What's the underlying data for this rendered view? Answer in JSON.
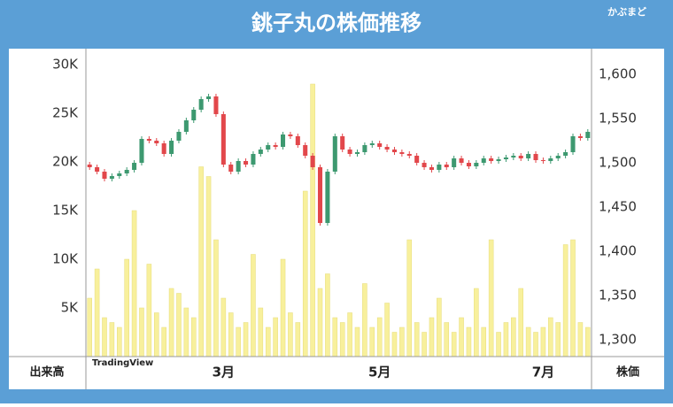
{
  "chart_data": {
    "type": "candlestick",
    "title": "銚子丸の株価推移",
    "brand": "かぶまど",
    "watermark": "TradingView",
    "y_label": "出来高",
    "y2_label": "株価",
    "categories": [
      null,
      null,
      null,
      null,
      null,
      null,
      null,
      null,
      null,
      null,
      null,
      null,
      null,
      null,
      null,
      null,
      null,
      null,
      "3月",
      null,
      null,
      null,
      null,
      null,
      null,
      null,
      null,
      null,
      null,
      null,
      null,
      null,
      null,
      null,
      null,
      null,
      null,
      null,
      null,
      "5月",
      null,
      null,
      null,
      null,
      null,
      null,
      null,
      null,
      null,
      null,
      null,
      null,
      null,
      null,
      null,
      null,
      null,
      null,
      null,
      null,
      null,
      "7月",
      null,
      null,
      null,
      null,
      null,
      null
    ],
    "open": [
      1498,
      1495,
      1490,
      1482,
      1485,
      1488,
      1492,
      1500,
      1527,
      1525,
      1522,
      1510,
      1525,
      1535,
      1548,
      1560,
      1572,
      1575,
      1555,
      1498,
      1490,
      1502,
      1498,
      1510,
      1515,
      1520,
      1518,
      1532,
      1530,
      1520,
      1508,
      1495,
      1432,
      1490,
      1530,
      1515,
      1510,
      1512,
      1520,
      1522,
      1518,
      1515,
      1512,
      1510,
      1508,
      1500,
      1495,
      1492,
      1498,
      1495,
      1505,
      1500,
      1496,
      1500,
      1505,
      1502,
      1504,
      1506,
      1508,
      1505,
      1510,
      1503,
      1502,
      1505,
      1508,
      1512,
      1530,
      1528
    ],
    "high": [
      1501,
      1498,
      1493,
      1488,
      1491,
      1495,
      1503,
      1530,
      1530,
      1528,
      1525,
      1528,
      1538,
      1551,
      1563,
      1575,
      1578,
      1578,
      1558,
      1501,
      1505,
      1505,
      1513,
      1518,
      1523,
      1523,
      1535,
      1535,
      1533,
      1523,
      1511,
      1498,
      1493,
      1533,
      1533,
      1518,
      1515,
      1523,
      1525,
      1525,
      1521,
      1518,
      1515,
      1513,
      1511,
      1503,
      1498,
      1501,
      1501,
      1508,
      1508,
      1503,
      1503,
      1508,
      1508,
      1507,
      1509,
      1511,
      1511,
      1513,
      1513,
      1506,
      1508,
      1511,
      1515,
      1533,
      1533,
      1538
    ],
    "low": [
      1492,
      1487,
      1479,
      1479,
      1482,
      1485,
      1489,
      1497,
      1522,
      1519,
      1507,
      1507,
      1522,
      1532,
      1545,
      1557,
      1569,
      1552,
      1495,
      1487,
      1487,
      1495,
      1495,
      1507,
      1512,
      1515,
      1515,
      1527,
      1517,
      1505,
      1492,
      1429,
      1429,
      1487,
      1512,
      1507,
      1507,
      1509,
      1517,
      1515,
      1512,
      1509,
      1507,
      1505,
      1497,
      1492,
      1489,
      1489,
      1492,
      1492,
      1497,
      1493,
      1493,
      1497,
      1499,
      1499,
      1501,
      1503,
      1502,
      1502,
      1500,
      1499,
      1499,
      1502,
      1505,
      1509,
      1525,
      1525
    ],
    "close": [
      1495,
      1490,
      1482,
      1485,
      1488,
      1492,
      1500,
      1527,
      1525,
      1522,
      1510,
      1525,
      1535,
      1548,
      1560,
      1572,
      1575,
      1555,
      1498,
      1490,
      1502,
      1498,
      1510,
      1515,
      1520,
      1518,
      1532,
      1530,
      1520,
      1508,
      1495,
      1432,
      1490,
      1530,
      1515,
      1510,
      1512,
      1520,
      1522,
      1518,
      1515,
      1512,
      1510,
      1508,
      1500,
      1495,
      1492,
      1498,
      1495,
      1505,
      1500,
      1496,
      1500,
      1505,
      1502,
      1504,
      1506,
      1508,
      1505,
      1510,
      1503,
      1502,
      1505,
      1508,
      1512,
      1530,
      1528,
      1535
    ],
    "volume": [
      6000,
      9000,
      4000,
      3500,
      3000,
      10000,
      15000,
      5000,
      9500,
      4500,
      3000,
      7000,
      6500,
      5000,
      4000,
      19500,
      18500,
      12000,
      6000,
      4500,
      3000,
      3500,
      10500,
      5000,
      3000,
      4000,
      10000,
      4500,
      3500,
      17000,
      28000,
      7000,
      8500,
      4000,
      3500,
      4500,
      3000,
      7500,
      3000,
      4000,
      5500,
      2500,
      3000,
      12000,
      3500,
      2500,
      4000,
      6000,
      3500,
      2500,
      4000,
      3000,
      7000,
      3000,
      12000,
      2500,
      3500,
      4000,
      7000,
      3000,
      2500,
      3000,
      4000,
      3500,
      11500,
      12000,
      3500,
      3000
    ],
    "up_color": "#3d9970",
    "down_color": "#e2474b",
    "volume_color": "#f8f09c",
    "ylim": [
      0,
      30000
    ],
    "yticks": [
      {
        "value": 5000,
        "label": "5K"
      },
      {
        "value": 10000,
        "label": "10K"
      },
      {
        "value": 15000,
        "label": "15K"
      },
      {
        "value": 20000,
        "label": "20K"
      },
      {
        "value": 25000,
        "label": "25K"
      },
      {
        "value": 30000,
        "label": "30K"
      }
    ],
    "y2lim": [
      1281,
      1611
    ],
    "y2ticks": [
      {
        "value": 1300,
        "label": "1,300"
      },
      {
        "value": 1350,
        "label": "1,350"
      },
      {
        "value": 1400,
        "label": "1,400"
      },
      {
        "value": 1450,
        "label": "1,450"
      },
      {
        "value": 1500,
        "label": "1,500"
      },
      {
        "value": 1550,
        "label": "1,550"
      },
      {
        "value": 1600,
        "label": "1,600"
      }
    ]
  }
}
